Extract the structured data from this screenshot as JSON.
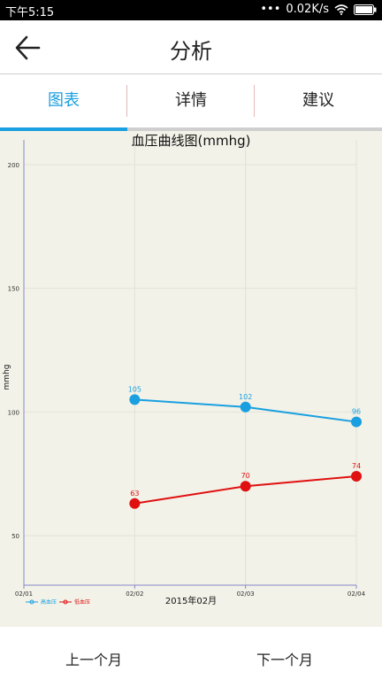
{
  "status": {
    "time": "下午5:15",
    "net_speed": "0.02K/s"
  },
  "header": {
    "title": "分析"
  },
  "tabs": [
    {
      "label": "图表"
    },
    {
      "label": "详情"
    },
    {
      "label": "建议"
    }
  ],
  "chart_data": {
    "type": "line",
    "title": "血压曲线图(mmhg)",
    "ylabel": "mmhg",
    "xlabel": "2015年02月",
    "categories": [
      "02/01",
      "02/02",
      "02/03",
      "02/04"
    ],
    "ylim": [
      30,
      210
    ],
    "yticks": [
      50,
      100,
      150,
      200
    ],
    "grid": true,
    "legend_position": "bottom-left",
    "series": [
      {
        "name": "高血压",
        "color": "#1a9fe0",
        "points": [
          [
            1,
            105
          ],
          [
            2,
            102
          ],
          [
            3,
            96
          ]
        ]
      },
      {
        "name": "低血压",
        "color": "#e01010",
        "points": [
          [
            1,
            63
          ],
          [
            2,
            70
          ],
          [
            3,
            74
          ]
        ]
      }
    ]
  },
  "footer": {
    "prev_label": "上一个月",
    "next_label": "下一个月"
  }
}
